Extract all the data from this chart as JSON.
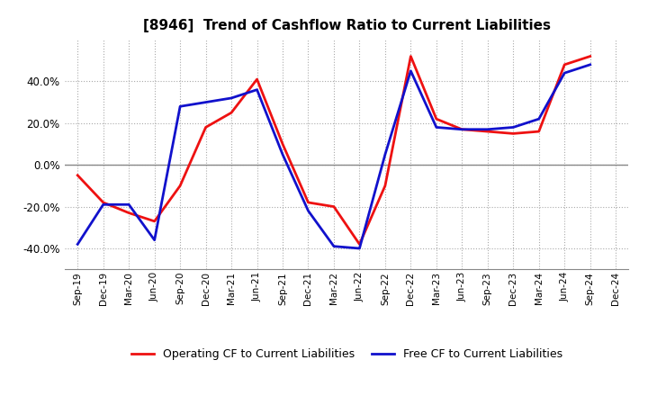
{
  "title": "[8946]  Trend of Cashflow Ratio to Current Liabilities",
  "x_labels": [
    "Sep-19",
    "Dec-19",
    "Mar-20",
    "Jun-20",
    "Sep-20",
    "Dec-20",
    "Mar-21",
    "Jun-21",
    "Sep-21",
    "Dec-21",
    "Mar-22",
    "Jun-22",
    "Sep-22",
    "Dec-22",
    "Mar-23",
    "Jun-23",
    "Sep-23",
    "Dec-23",
    "Mar-24",
    "Jun-24",
    "Sep-24",
    "Dec-24"
  ],
  "operating_cf": [
    -5.0,
    -18.0,
    -23.0,
    -27.0,
    -10.0,
    18.0,
    25.0,
    41.0,
    10.0,
    -18.0,
    -20.0,
    -38.0,
    -10.0,
    52.0,
    22.0,
    17.0,
    16.0,
    15.0,
    16.0,
    48.0,
    52.0,
    null
  ],
  "free_cf": [
    -38.0,
    -19.0,
    -19.0,
    -36.0,
    28.0,
    30.0,
    32.0,
    36.0,
    5.0,
    -22.0,
    -39.0,
    -40.0,
    5.0,
    45.0,
    18.0,
    17.0,
    17.0,
    18.0,
    22.0,
    44.0,
    48.0,
    null
  ],
  "ylim": [
    -50,
    60
  ],
  "yticks": [
    -40,
    -20,
    0,
    20,
    40
  ],
  "operating_color": "#ee1111",
  "free_color": "#1111cc",
  "background_color": "#ffffff",
  "grid_color": "#aaaaaa",
  "linewidth": 2.0,
  "legend_operating": "Operating CF to Current Liabilities",
  "legend_free": "Free CF to Current Liabilities"
}
